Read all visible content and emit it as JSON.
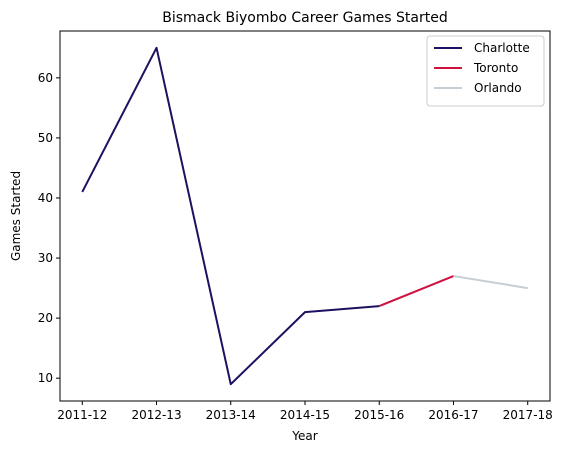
{
  "chart_data": {
    "type": "line",
    "title": "Bismack Biyombo Career Games Started",
    "xlabel": "Year",
    "ylabel": "Games Started",
    "categories": [
      "2011-12",
      "2012-13",
      "2013-14",
      "2014-15",
      "2015-16",
      "2016-17",
      "2017-18"
    ],
    "yticks": [
      10,
      20,
      30,
      40,
      50,
      60
    ],
    "ylim": [
      6.2,
      67.8
    ],
    "grid": false,
    "legend_position": "top-right",
    "series": [
      {
        "name": "Charlotte",
        "color": "#1d1160",
        "x": [
          "2011-12",
          "2012-13",
          "2013-14",
          "2014-15",
          "2015-16"
        ],
        "values": [
          41,
          65,
          9,
          21,
          22
        ]
      },
      {
        "name": "Toronto",
        "color": "#ce1141",
        "x": [
          "2015-16",
          "2016-17"
        ],
        "values": [
          22,
          27
        ]
      },
      {
        "name": "Orlando",
        "color": "#c4ced4",
        "x": [
          "2016-17",
          "2017-18"
        ],
        "values": [
          27,
          25
        ]
      }
    ]
  }
}
